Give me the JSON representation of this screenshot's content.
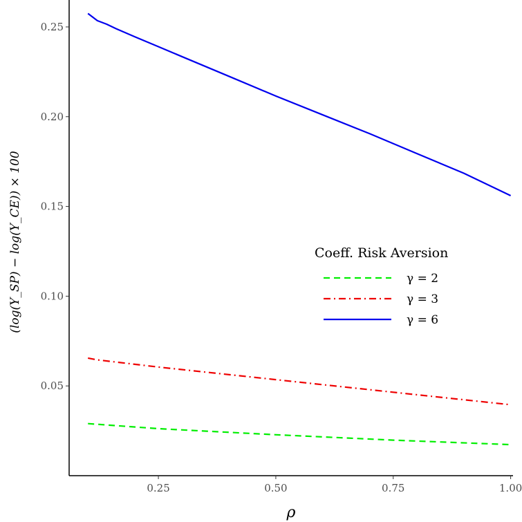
{
  "chart_data": {
    "type": "line",
    "xlabel": "ρ",
    "ylabel": "(log(Y_SP) − log(Y_CE)) × 100",
    "xlim": [
      0.06,
      1.005
    ],
    "ylim": [
      0.0,
      0.265
    ],
    "x_ticks": [
      0.25,
      0.5,
      0.75,
      1.0
    ],
    "x_tick_labels": [
      "0.25",
      "0.50",
      "0.75",
      "1.00"
    ],
    "y_ticks": [
      0.05,
      0.1,
      0.15,
      0.2,
      0.25
    ],
    "y_tick_labels": [
      "0.05",
      "0.10",
      "0.15",
      "0.20",
      "0.25"
    ],
    "grid": false,
    "legend": {
      "title": "Coeff. Risk Aversion",
      "placement": "right-center"
    },
    "series": [
      {
        "name": "γ = 2",
        "color": "#00ee00",
        "style": "dashed",
        "x": [
          0.1,
          0.25,
          0.5,
          0.75,
          1.0
        ],
        "y": [
          0.029,
          0.0262,
          0.0228,
          0.0198,
          0.0173
        ]
      },
      {
        "name": "γ = 3",
        "color": "#ee0000",
        "style": "dashdot",
        "x": [
          0.1,
          0.12,
          0.25,
          0.5,
          0.75,
          1.0
        ],
        "y": [
          0.0655,
          0.0645,
          0.0605,
          0.0535,
          0.0465,
          0.0395
        ]
      },
      {
        "name": "γ = 6",
        "color": "#0000ee",
        "style": "solid",
        "x": [
          0.1,
          0.12,
          0.14,
          0.16,
          0.2,
          0.25,
          0.3,
          0.4,
          0.5,
          0.6,
          0.7,
          0.8,
          0.9,
          1.0
        ],
        "y": [
          0.2575,
          0.2535,
          0.2515,
          0.249,
          0.2445,
          0.239,
          0.2335,
          0.2225,
          0.2115,
          0.201,
          0.1905,
          0.1795,
          0.1685,
          0.156
        ]
      }
    ]
  }
}
